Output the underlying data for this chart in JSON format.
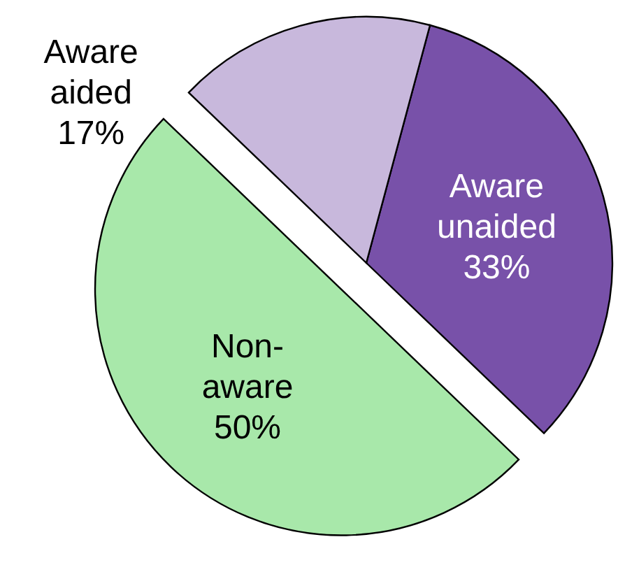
{
  "chart_data": {
    "type": "pie",
    "categories": [
      "Aware unaided",
      "Non-aware",
      "Aware aided"
    ],
    "values": [
      33,
      50,
      17
    ],
    "colors": [
      "#7851a9",
      "#a8e8aa",
      "#c8b8dc"
    ],
    "value_labels": [
      "33%",
      "50%",
      "17%"
    ]
  }
}
